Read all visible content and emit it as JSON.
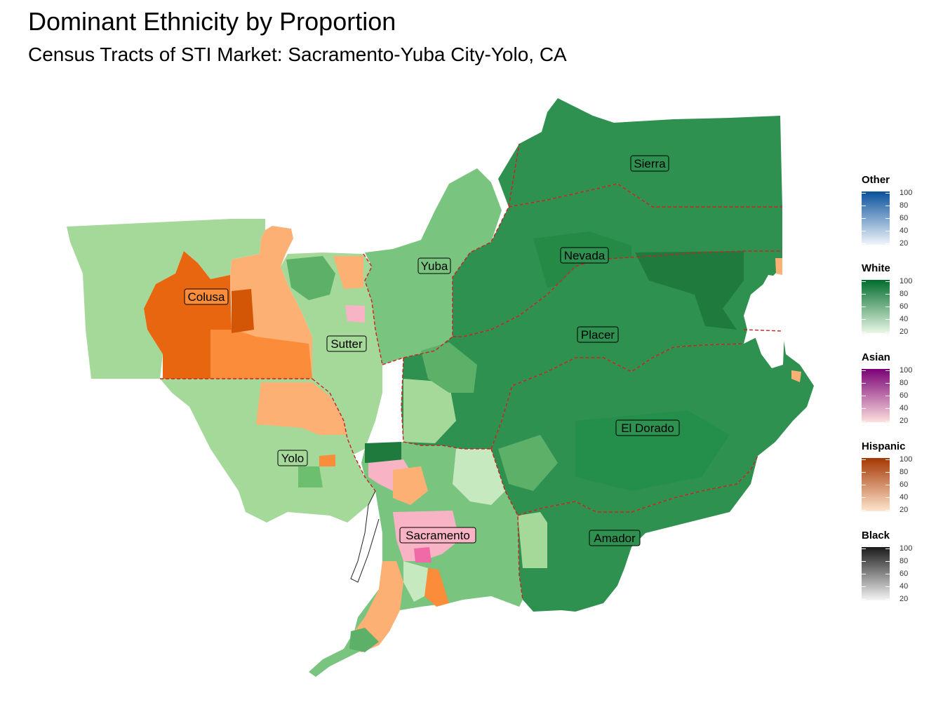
{
  "title": "Dominant Ethnicity by Proportion",
  "subtitle": "Census Tracts of STI Market: Sacramento-Yuba City-Yolo, CA",
  "counties": [
    "Sierra",
    "Nevada",
    "Yuba",
    "Colusa",
    "Sutter",
    "Placer",
    "El Dorado",
    "Yolo",
    "Sacramento",
    "Amador"
  ],
  "legends": [
    {
      "title": "Other",
      "ticks": [
        "100",
        "80",
        "60",
        "40",
        "20"
      ],
      "color_low": "#f1f6fc",
      "color_high": "#08519c"
    },
    {
      "title": "White",
      "ticks": [
        "100",
        "80",
        "60",
        "40",
        "20"
      ],
      "color_low": "#eaf7e6",
      "color_high": "#006d2c"
    },
    {
      "title": "Asian",
      "ticks": [
        "100",
        "80",
        "60",
        "40",
        "20"
      ],
      "color_low": "#fde0dd",
      "color_high": "#7a0177"
    },
    {
      "title": "Hispanic",
      "ticks": [
        "100",
        "80",
        "60",
        "40",
        "20"
      ],
      "color_low": "#fee6ce",
      "color_high": "#a63603"
    },
    {
      "title": "Black",
      "ticks": [
        "100",
        "80",
        "60",
        "40",
        "20"
      ],
      "color_low": "#f5f5f5",
      "color_high": "#1a1a1a"
    }
  ],
  "colors": {
    "county_border": "#cc2222",
    "outline": "#222222",
    "white_light": "#a5d99a",
    "white_mid": "#5cb068",
    "white_dark": "#2e9150",
    "white_darkest": "#1f7a3d",
    "hispanic_mid": "#fb8c3a",
    "hispanic_dark": "#e8660f",
    "hispanic_light": "#fdb074",
    "asian_light": "#f8b4c4",
    "asian_mid": "#ef6aa6"
  }
}
